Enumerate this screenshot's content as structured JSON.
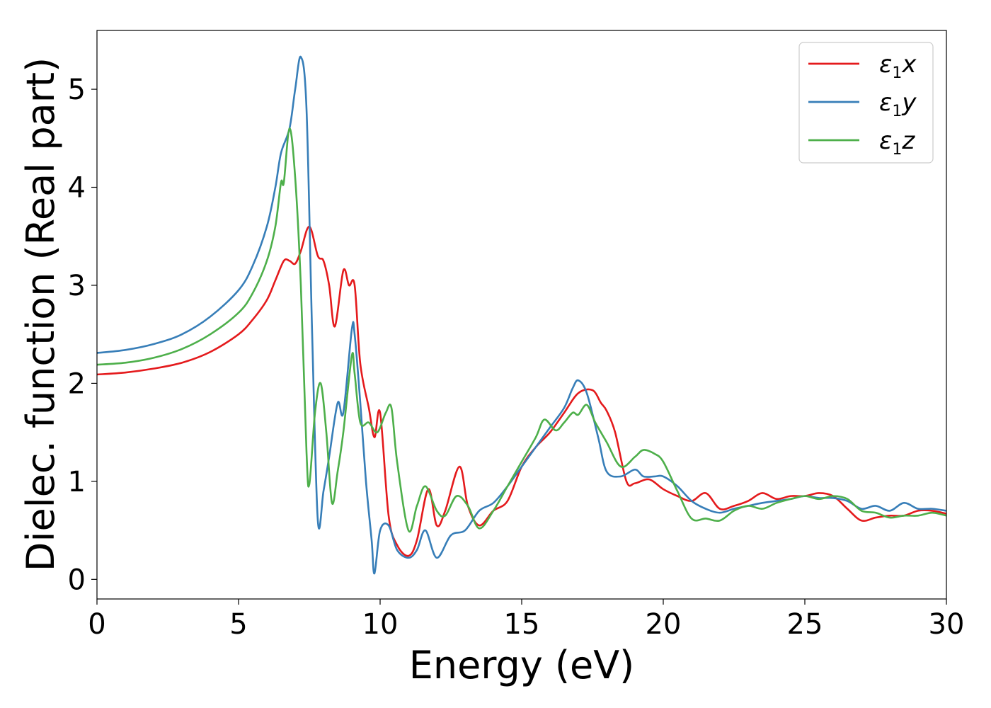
{
  "chart_data": {
    "type": "line",
    "title": "",
    "xlabel": "Energy (eV)",
    "ylabel": "Dielec. function (Real part)",
    "xlim": [
      0,
      30
    ],
    "ylim": [
      -0.2,
      5.6
    ],
    "xticks": [
      "0",
      "5",
      "10",
      "15",
      "20",
      "25",
      "30"
    ],
    "yticks": [
      "0",
      "1",
      "2",
      "3",
      "4",
      "5"
    ],
    "grid": false,
    "legend_position": "top-right",
    "series": [
      {
        "name": "ε1x",
        "legend": {
          "base": "ε",
          "sub": "1",
          "suffix": "x"
        },
        "color": "#e41a1c",
        "x": [
          0,
          1,
          2,
          3,
          4,
          5,
          5.5,
          6,
          6.3,
          6.6,
          6.8,
          7.0,
          7.2,
          7.5,
          7.8,
          8.0,
          8.2,
          8.4,
          8.7,
          8.9,
          9.1,
          9.3,
          9.6,
          9.8,
          10.0,
          10.3,
          10.6,
          11.0,
          11.3,
          11.7,
          12.0,
          12.3,
          12.8,
          13.1,
          13.5,
          14.0,
          14.5,
          15.0,
          15.5,
          16.0,
          16.5,
          17.0,
          17.5,
          17.8,
          18.0,
          18.3,
          18.7,
          19.0,
          19.5,
          20.0,
          20.5,
          21.0,
          21.5,
          22.0,
          22.5,
          23.0,
          23.5,
          24.0,
          24.5,
          25.0,
          25.5,
          26.0,
          26.5,
          27.0,
          27.5,
          28.0,
          28.5,
          29.0,
          29.5,
          30.0
        ],
        "y": [
          2.09,
          2.11,
          2.15,
          2.21,
          2.32,
          2.5,
          2.65,
          2.85,
          3.05,
          3.25,
          3.25,
          3.22,
          3.35,
          3.6,
          3.3,
          3.25,
          3.0,
          2.58,
          3.15,
          3.0,
          3.0,
          2.2,
          1.75,
          1.45,
          1.7,
          0.65,
          0.35,
          0.24,
          0.4,
          0.92,
          0.55,
          0.7,
          1.15,
          0.75,
          0.55,
          0.7,
          0.8,
          1.15,
          1.35,
          1.5,
          1.7,
          1.9,
          1.93,
          1.8,
          1.72,
          1.5,
          1.0,
          0.98,
          1.02,
          0.92,
          0.85,
          0.8,
          0.88,
          0.72,
          0.75,
          0.8,
          0.88,
          0.82,
          0.85,
          0.85,
          0.88,
          0.85,
          0.72,
          0.6,
          0.63,
          0.65,
          0.65,
          0.7,
          0.7,
          0.67
        ]
      },
      {
        "name": "ε1y",
        "legend": {
          "base": "ε",
          "sub": "1",
          "suffix": "y"
        },
        "color": "#377eb8",
        "x": [
          0,
          1,
          2,
          3,
          4,
          5,
          5.5,
          6,
          6.3,
          6.5,
          6.8,
          7.0,
          7.2,
          7.4,
          7.6,
          7.8,
          8.0,
          8.2,
          8.5,
          8.7,
          9.0,
          9.1,
          9.3,
          9.5,
          9.7,
          9.8,
          10.0,
          10.3,
          10.6,
          11.0,
          11.3,
          11.6,
          12.0,
          12.5,
          13.0,
          13.5,
          14.0,
          14.5,
          15.0,
          15.5,
          16.0,
          16.5,
          16.8,
          17.0,
          17.3,
          17.7,
          18.0,
          18.5,
          19.0,
          19.3,
          19.7,
          20.0,
          20.5,
          21.0,
          21.5,
          22.0,
          22.5,
          23.0,
          23.5,
          24.0,
          24.5,
          25.0,
          25.5,
          26.0,
          26.5,
          27.0,
          27.5,
          28.0,
          28.5,
          29.0,
          29.5,
          30.0
        ],
        "y": [
          2.31,
          2.34,
          2.4,
          2.5,
          2.68,
          2.95,
          3.2,
          3.6,
          4.0,
          4.35,
          4.6,
          5.0,
          5.33,
          4.8,
          2.5,
          0.6,
          0.9,
          1.25,
          1.8,
          1.7,
          2.55,
          2.5,
          1.8,
          1.0,
          0.4,
          0.06,
          0.5,
          0.55,
          0.3,
          0.22,
          0.3,
          0.5,
          0.22,
          0.45,
          0.5,
          0.7,
          0.78,
          0.95,
          1.15,
          1.35,
          1.55,
          1.75,
          1.95,
          2.03,
          1.9,
          1.45,
          1.1,
          1.05,
          1.12,
          1.05,
          1.05,
          1.05,
          0.95,
          0.8,
          0.72,
          0.68,
          0.72,
          0.75,
          0.78,
          0.8,
          0.82,
          0.85,
          0.83,
          0.83,
          0.8,
          0.72,
          0.75,
          0.7,
          0.78,
          0.72,
          0.72,
          0.7
        ]
      },
      {
        "name": "ε1z",
        "legend": {
          "base": "ε",
          "sub": "1",
          "suffix": "z"
        },
        "color": "#4daf4a",
        "x": [
          0,
          1,
          2,
          3,
          4,
          5,
          5.5,
          6,
          6.3,
          6.5,
          6.6,
          6.8,
          7.0,
          7.2,
          7.4,
          7.5,
          7.7,
          7.9,
          8.1,
          8.3,
          8.5,
          8.7,
          9.0,
          9.1,
          9.3,
          9.6,
          9.9,
          10.2,
          10.4,
          10.6,
          11.0,
          11.3,
          11.6,
          12.0,
          12.3,
          12.7,
          13.1,
          13.5,
          14.0,
          14.5,
          15.0,
          15.5,
          15.8,
          16.2,
          16.5,
          16.8,
          17.0,
          17.3,
          17.6,
          18.0,
          18.5,
          19.0,
          19.3,
          19.7,
          20.0,
          20.5,
          21.0,
          21.5,
          22.0,
          22.5,
          23.0,
          23.5,
          24.0,
          24.5,
          25.0,
          25.5,
          26.0,
          26.5,
          27.0,
          27.5,
          28.0,
          28.5,
          29.0,
          29.5,
          30.0
        ],
        "y": [
          2.19,
          2.21,
          2.26,
          2.35,
          2.5,
          2.72,
          2.92,
          3.25,
          3.6,
          4.05,
          4.05,
          4.6,
          4.1,
          3.0,
          1.3,
          0.97,
          1.7,
          2.0,
          1.5,
          0.78,
          1.1,
          1.5,
          2.28,
          2.1,
          1.6,
          1.6,
          1.5,
          1.7,
          1.75,
          1.2,
          0.5,
          0.75,
          0.95,
          0.7,
          0.65,
          0.85,
          0.75,
          0.52,
          0.7,
          0.95,
          1.2,
          1.45,
          1.63,
          1.52,
          1.6,
          1.7,
          1.68,
          1.78,
          1.6,
          1.4,
          1.15,
          1.25,
          1.32,
          1.28,
          1.2,
          0.9,
          0.62,
          0.62,
          0.6,
          0.7,
          0.75,
          0.72,
          0.78,
          0.82,
          0.85,
          0.82,
          0.85,
          0.82,
          0.7,
          0.68,
          0.63,
          0.65,
          0.65,
          0.68,
          0.65
        ]
      }
    ]
  }
}
